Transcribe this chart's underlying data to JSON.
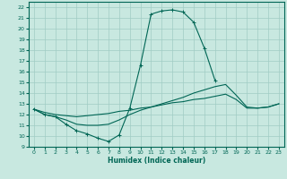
{
  "xlabel": "Humidex (Indice chaleur)",
  "xlim": [
    -0.5,
    23.5
  ],
  "ylim": [
    9,
    22.5
  ],
  "yticks": [
    9,
    10,
    11,
    12,
    13,
    14,
    15,
    16,
    17,
    18,
    19,
    20,
    21,
    22
  ],
  "xticks": [
    0,
    1,
    2,
    3,
    4,
    5,
    6,
    7,
    8,
    9,
    10,
    11,
    12,
    13,
    14,
    15,
    16,
    17,
    18,
    19,
    20,
    21,
    22,
    23
  ],
  "bg_color": "#c8e8e0",
  "grid_color": "#a0ccc4",
  "line_color": "#006655",
  "curve1_x": [
    0,
    1,
    2,
    3,
    4,
    5,
    6,
    7,
    8,
    9,
    10,
    11,
    12,
    13,
    14,
    15,
    16,
    17
  ],
  "curve1_y": [
    12.5,
    12.0,
    11.8,
    11.1,
    10.5,
    10.2,
    9.8,
    9.5,
    10.1,
    12.6,
    16.6,
    21.35,
    21.65,
    21.75,
    21.55,
    20.6,
    18.2,
    15.2
  ],
  "curve2_x": [
    0,
    1,
    2,
    3,
    4,
    5,
    6,
    7,
    8,
    9,
    10,
    11,
    12,
    13,
    14,
    15,
    16,
    17,
    18,
    19,
    20,
    21,
    22,
    23
  ],
  "curve2_y": [
    12.5,
    12.0,
    11.8,
    11.5,
    11.1,
    11.0,
    11.0,
    11.1,
    11.5,
    12.0,
    12.4,
    12.7,
    13.0,
    13.3,
    13.6,
    14.0,
    14.3,
    14.6,
    14.8,
    13.8,
    12.7,
    12.6,
    12.7,
    13.0
  ],
  "curve3_x": [
    0,
    1,
    2,
    3,
    4,
    5,
    6,
    7,
    8,
    9,
    10,
    11,
    12,
    13,
    14,
    15,
    16,
    17,
    18,
    19,
    20,
    21,
    22,
    23
  ],
  "curve3_y": [
    12.5,
    12.2,
    12.0,
    11.9,
    11.8,
    11.9,
    12.0,
    12.1,
    12.3,
    12.4,
    12.6,
    12.7,
    12.9,
    13.1,
    13.2,
    13.4,
    13.5,
    13.7,
    13.9,
    13.4,
    12.6,
    12.6,
    12.7,
    13.0
  ]
}
